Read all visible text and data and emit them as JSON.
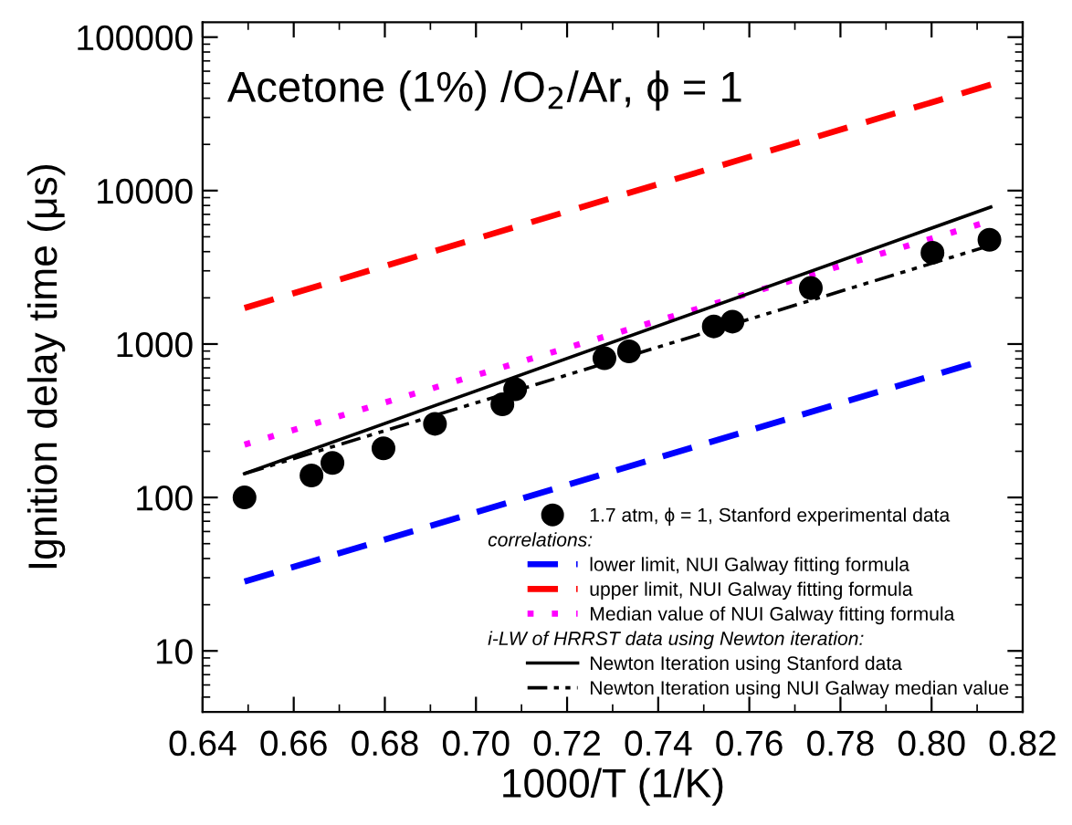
{
  "chart_data": {
    "type": "line",
    "title": "Acetone (1%) /O$_{2}$/Ar, ϕ = 1",
    "xlabel": "1000/T (1/K)",
    "ylabel": "Ignition delay time (μs)",
    "log": "y",
    "xlim": [
      0.64,
      0.82
    ],
    "xticks": [
      {
        "value": 0.64,
        "label": "0.64"
      },
      {
        "value": 0.66,
        "label": "0.66"
      },
      {
        "value": 0.68,
        "label": "0.68"
      },
      {
        "value": 0.7,
        "label": "0.70"
      },
      {
        "value": 0.72,
        "label": "0.72"
      },
      {
        "value": 0.74,
        "label": "0.74"
      },
      {
        "value": 0.76,
        "label": "0.76"
      },
      {
        "value": 0.78,
        "label": "0.78"
      },
      {
        "value": 0.8,
        "label": "0.80"
      },
      {
        "value": 0.82,
        "label": "0.82"
      }
    ],
    "ylim": [
      4,
      125000
    ],
    "yticks": [
      10,
      100,
      1000,
      10000,
      100000
    ],
    "grid": false,
    "legend": "bottom right",
    "annotations": [
      "correlations:",
      "i-LW of HRRST data using Newton iteration:"
    ],
    "series": [
      {
        "name": "1.7 atm, ϕ = 1, Stanford experimental data",
        "type": "scatter",
        "marker": "circle",
        "color": "#000000",
        "x": [
          0.6492,
          0.6639,
          0.6685,
          0.6797,
          0.691,
          0.7058,
          0.7086,
          0.7282,
          0.7336,
          0.7522,
          0.7563,
          0.7735,
          0.8002,
          0.8127
        ],
        "values": [
          100,
          139,
          168,
          209,
          302,
          405,
          508,
          809,
          896,
          1303,
          1400,
          2317,
          3936,
          4775
        ]
      },
      {
        "name": "lower limit, NUI Galway fitting formula",
        "line_style": "dashed",
        "color": "#0000ff",
        "x": [
          0.6492,
          0.8086
        ],
        "values": [
          28.3,
          740
        ]
      },
      {
        "name": "upper limit, NUI Galway fitting formula",
        "line_style": "dashed",
        "color": "#ff0000",
        "x": [
          0.6492,
          0.813
        ],
        "values": [
          1718,
          49000
        ]
      },
      {
        "name": "Median value of NUI Galway fitting formula",
        "line_style": "dotted",
        "color": "#ff00ff",
        "x": [
          0.6492,
          0.8106
        ],
        "values": [
          221,
          6050
        ]
      },
      {
        "name": "Newton Iteration using Stanford data",
        "line_style": "solid",
        "color": "#000000",
        "x": [
          0.6492,
          0.813
        ],
        "values": [
          143,
          7820
        ]
      },
      {
        "name": "Newton Iteration using NUI Galway median value",
        "line_style": "dashdot",
        "color": "#000000",
        "x": [
          0.6492,
          0.813
        ],
        "values": [
          143,
          4400
        ]
      }
    ]
  }
}
